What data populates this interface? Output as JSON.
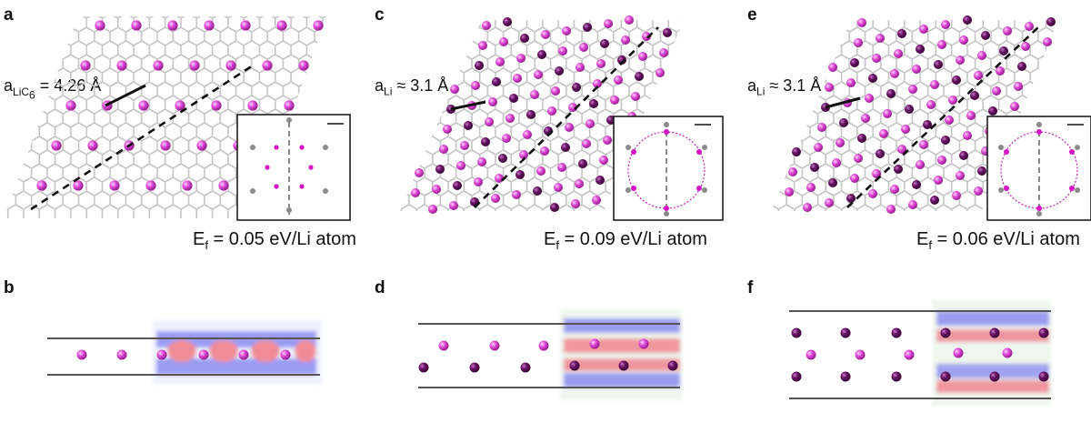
{
  "figure": {
    "panels": [
      {
        "letter": "a",
        "lattice_main": "a",
        "lattice_sub": "LiC",
        "lattice_sub2": "6",
        "lattice_value": " = 4.26 Å",
        "ef_main": "E",
        "ef_sub": "f",
        "ef_value": " = 0.05 eV/Li atom"
      },
      {
        "letter": "c",
        "lattice_main": "a",
        "lattice_sub": "Li",
        "lattice_sub2": "",
        "lattice_value": " ≈ 3.1 Å",
        "ef_main": "E",
        "ef_sub": "f",
        "ef_value": " = 0.09 eV/Li atom"
      },
      {
        "letter": "e",
        "lattice_main": "a",
        "lattice_sub": "Li",
        "lattice_sub2": "",
        "lattice_value": " ≈ 3.1 Å",
        "ef_main": "E",
        "ef_sub": "f",
        "ef_value": " = 0.06 eV/Li atom"
      }
    ],
    "side_panels": [
      {
        "letter": "b"
      },
      {
        "letter": "d"
      },
      {
        "letter": "f"
      }
    ],
    "colors": {
      "li_light": "#e04fd8",
      "li_dark": "#6a1266",
      "graphene": "#c8c8c8",
      "density_blue": "#8c8cf0",
      "density_red": "#f08c96"
    }
  }
}
